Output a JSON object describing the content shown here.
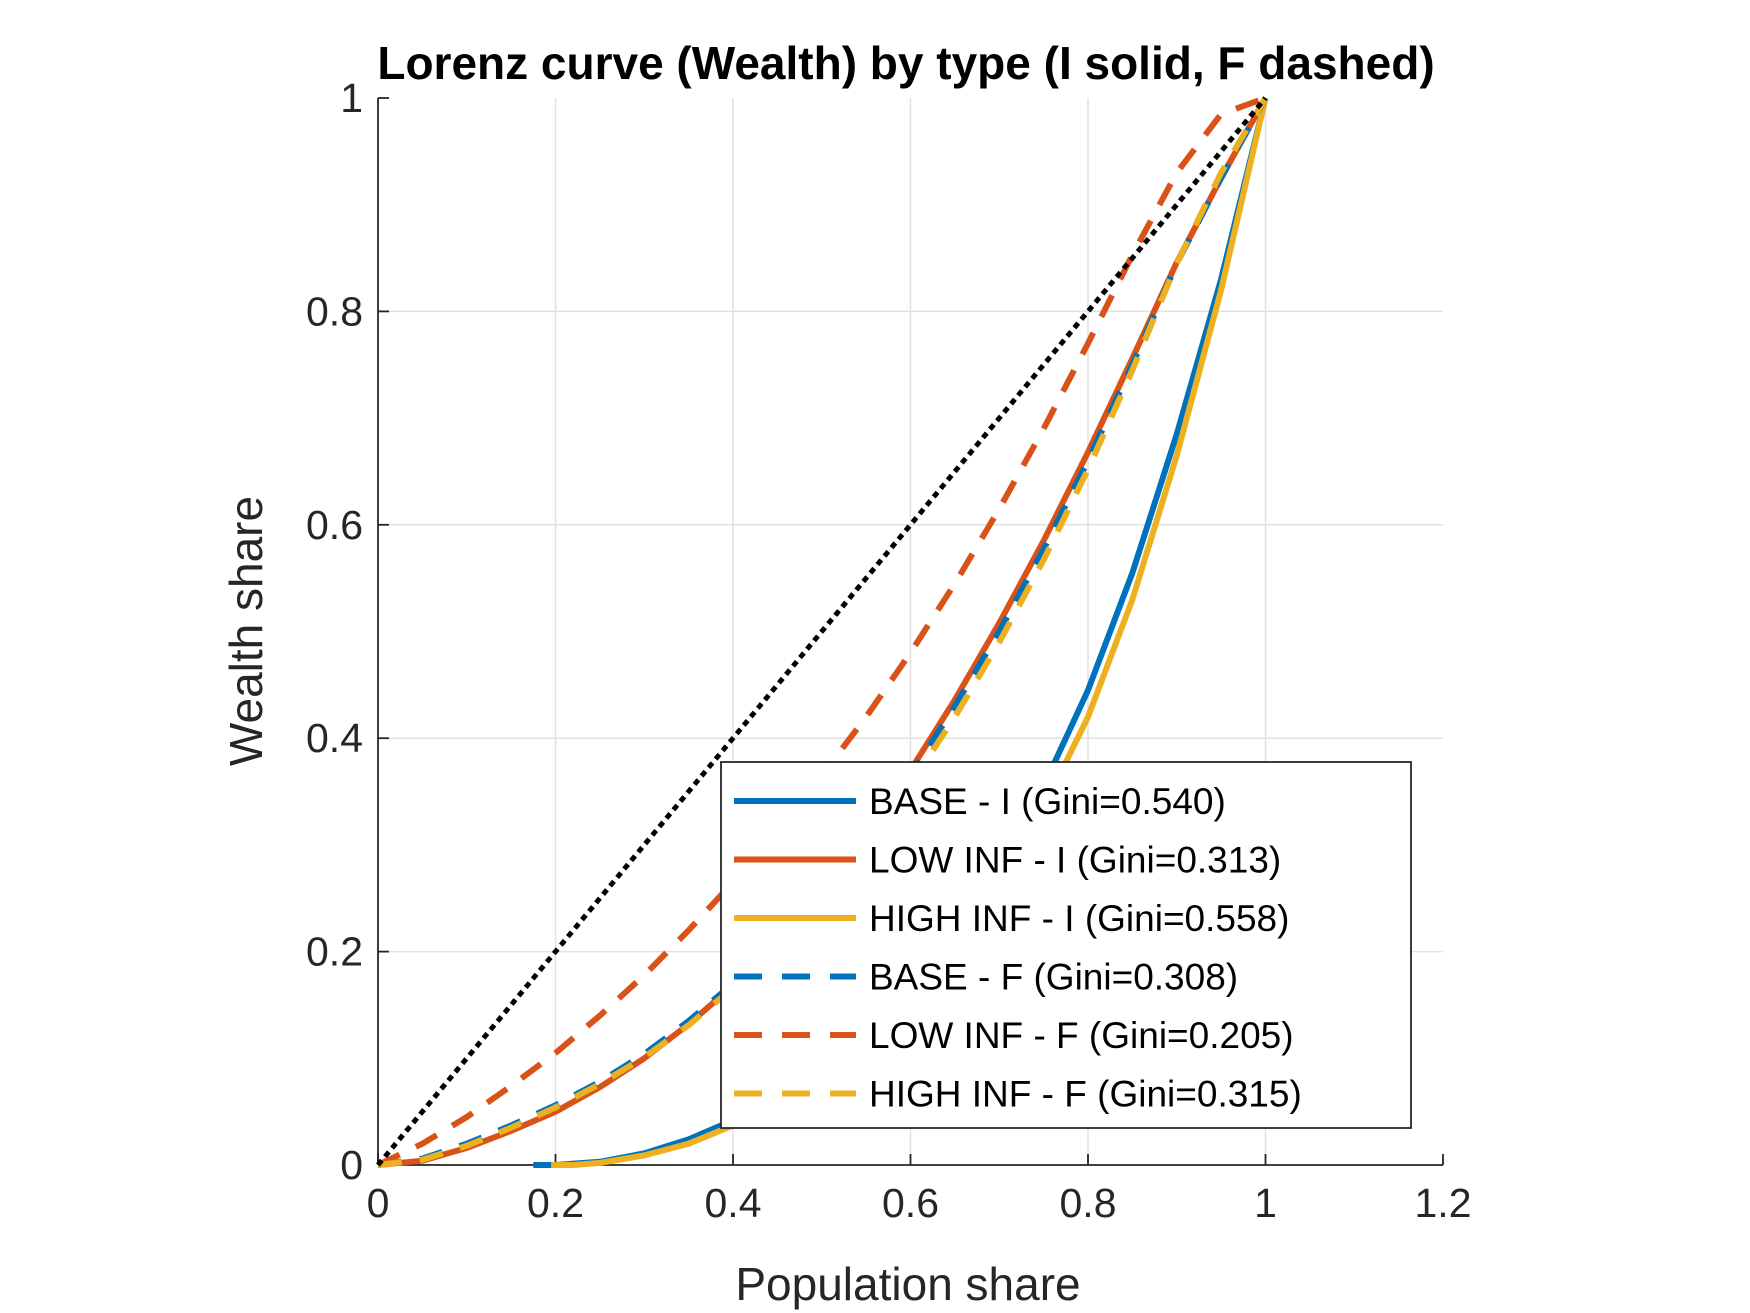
{
  "chart_data": {
    "type": "line",
    "title": "Lorenz curve (Wealth) by type (I solid, F dashed)",
    "xlabel": "Population share",
    "ylabel": "Wealth share",
    "xlim": [
      0,
      1.2
    ],
    "ylim": [
      0,
      1
    ],
    "xticks": [
      0,
      0.2,
      0.4,
      0.6,
      0.8,
      1,
      1.2
    ],
    "xtick_labels": [
      "0",
      "0.2",
      "0.4",
      "0.6",
      "0.8",
      "1",
      "1.2"
    ],
    "yticks": [
      0,
      0.2,
      0.4,
      0.6,
      0.8,
      1
    ],
    "ytick_labels": [
      "0",
      "0.2",
      "0.4",
      "0.6",
      "0.8",
      "1"
    ],
    "grid": true,
    "legend_position": "bottom-right",
    "equality_line": {
      "x": [
        0,
        1
      ],
      "y": [
        0,
        1
      ],
      "color": "#000000",
      "style": "dotted"
    },
    "series": [
      {
        "name": "BASE - I (Gini=0.540)",
        "color": "#0072BD",
        "style": "solid",
        "x": [
          0.175,
          0.2,
          0.25,
          0.3,
          0.35,
          0.4,
          0.45,
          0.5,
          0.55,
          0.6,
          0.65,
          0.7,
          0.75,
          0.8,
          0.85,
          0.9,
          0.95,
          1.0
        ],
        "y": [
          0,
          0,
          0.003,
          0.011,
          0.024,
          0.042,
          0.066,
          0.095,
          0.13,
          0.171,
          0.22,
          0.28,
          0.355,
          0.445,
          0.555,
          0.685,
          0.83,
          1.0
        ]
      },
      {
        "name": "LOW INF - I (Gini=0.313)",
        "color": "#D95319",
        "style": "solid",
        "x": [
          0,
          0.05,
          0.1,
          0.15,
          0.2,
          0.25,
          0.3,
          0.35,
          0.4,
          0.45,
          0.5,
          0.55,
          0.6,
          0.65,
          0.7,
          0.75,
          0.8,
          0.85,
          0.9,
          0.95,
          1.0
        ],
        "y": [
          0,
          0.004,
          0.016,
          0.032,
          0.05,
          0.073,
          0.1,
          0.132,
          0.168,
          0.209,
          0.256,
          0.31,
          0.37,
          0.436,
          0.508,
          0.585,
          0.668,
          0.756,
          0.846,
          0.925,
          1.0
        ]
      },
      {
        "name": "HIGH INF - I (Gini=0.558)",
        "color": "#EDB120",
        "style": "solid",
        "x": [
          0.195,
          0.22,
          0.25,
          0.3,
          0.35,
          0.4,
          0.45,
          0.5,
          0.55,
          0.6,
          0.65,
          0.7,
          0.75,
          0.8,
          0.85,
          0.9,
          0.95,
          1.0
        ],
        "y": [
          0,
          0,
          0.002,
          0.009,
          0.02,
          0.037,
          0.059,
          0.087,
          0.12,
          0.16,
          0.207,
          0.265,
          0.335,
          0.42,
          0.53,
          0.665,
          0.82,
          1.0
        ]
      },
      {
        "name": "BASE - F (Gini=0.308)",
        "color": "#0072BD",
        "style": "dashed",
        "x": [
          0,
          0.05,
          0.1,
          0.15,
          0.2,
          0.25,
          0.3,
          0.35,
          0.4,
          0.45,
          0.5,
          0.55,
          0.6,
          0.65,
          0.7,
          0.75,
          0.8,
          0.85,
          0.9,
          0.95,
          1.0
        ],
        "y": [
          0,
          0.006,
          0.02,
          0.037,
          0.056,
          0.078,
          0.104,
          0.135,
          0.17,
          0.21,
          0.256,
          0.307,
          0.365,
          0.43,
          0.5,
          0.577,
          0.66,
          0.75,
          0.845,
          0.925,
          1.0
        ]
      },
      {
        "name": "LOW INF - F (Gini=0.205)",
        "color": "#D95319",
        "style": "dashed",
        "x": [
          0,
          0.05,
          0.1,
          0.15,
          0.2,
          0.25,
          0.3,
          0.35,
          0.4,
          0.45,
          0.5,
          0.55,
          0.6,
          0.65,
          0.7,
          0.75,
          0.8,
          0.85,
          0.9,
          0.95,
          1.0
        ],
        "y": [
          0,
          0.02,
          0.045,
          0.074,
          0.105,
          0.14,
          0.178,
          0.22,
          0.265,
          0.313,
          0.365,
          0.42,
          0.48,
          0.545,
          0.615,
          0.69,
          0.77,
          0.853,
          0.93,
          0.985,
          1.0
        ]
      },
      {
        "name": "HIGH INF - F (Gini=0.315)",
        "color": "#EDB120",
        "style": "dashed",
        "x": [
          0,
          0.05,
          0.1,
          0.15,
          0.2,
          0.25,
          0.3,
          0.35,
          0.4,
          0.45,
          0.5,
          0.55,
          0.6,
          0.65,
          0.7,
          0.75,
          0.8,
          0.85,
          0.9,
          0.95,
          1.0
        ],
        "y": [
          0,
          0.005,
          0.018,
          0.035,
          0.054,
          0.076,
          0.101,
          0.131,
          0.166,
          0.205,
          0.25,
          0.3,
          0.357,
          0.42,
          0.49,
          0.567,
          0.652,
          0.745,
          0.845,
          0.93,
          1.0
        ]
      }
    ]
  }
}
